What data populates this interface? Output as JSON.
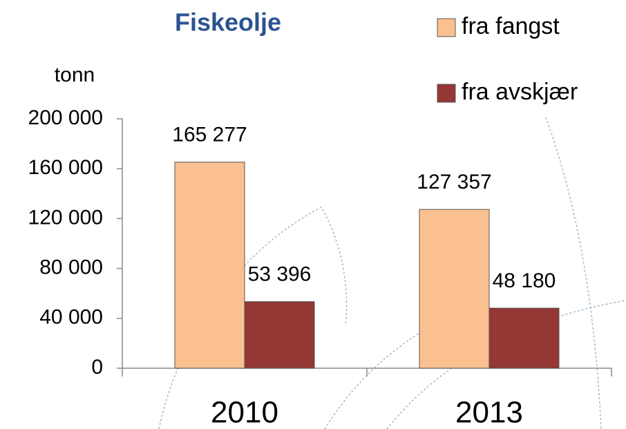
{
  "chart_data": {
    "type": "bar",
    "title": "Fiskeolje",
    "y_label": "tonn",
    "categories": [
      "2010",
      "2013"
    ],
    "series": [
      {
        "name": "fra fangst",
        "color": "#fac090",
        "values": [
          165277,
          127357
        ],
        "value_labels": [
          "165 277",
          "127 357"
        ]
      },
      {
        "name": "fra avskjær",
        "color": "#953735",
        "values": [
          53396,
          48180
        ],
        "value_labels": [
          "53 396",
          "48 180"
        ]
      }
    ],
    "ylim": [
      0,
      200000
    ],
    "yticks": [
      {
        "value": 0,
        "label": "0"
      },
      {
        "value": 40000,
        "label": "40 000"
      },
      {
        "value": 80000,
        "label": "80 000"
      },
      {
        "value": 120000,
        "label": "120 000"
      },
      {
        "value": 160000,
        "label": "160 000"
      },
      {
        "value": 200000,
        "label": "200 000"
      }
    ],
    "legend": "top-right"
  }
}
